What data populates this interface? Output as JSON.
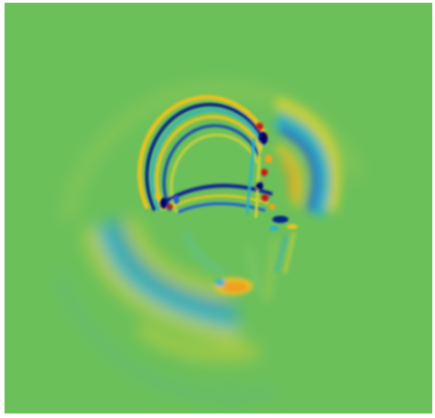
{
  "image": {
    "kind": "wavefield-simulation-snapshot",
    "background_color": "#6cc05a",
    "frame_color": "#ffffff",
    "colormap": {
      "name": "jet-like",
      "negative_strong": "#00006a",
      "negative": "#1f5ad6",
      "negative_soft": "#2fb3c8",
      "neutral": "#6cc05a",
      "positive_soft": "#d8d236",
      "positive": "#f3a21c",
      "positive_strong": "#c81414"
    }
  }
}
